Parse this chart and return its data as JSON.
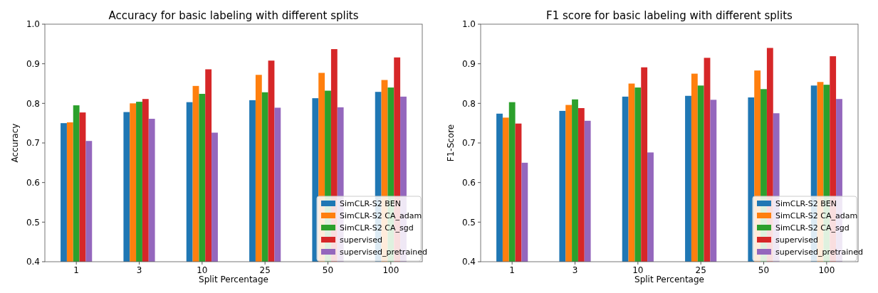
{
  "chart_data": [
    {
      "type": "bar",
      "title": "Accuracy for basic labeling with different splits",
      "xlabel": "Split Percentage",
      "ylabel": "Accuracy",
      "categories": [
        "1",
        "3",
        "10",
        "25",
        "50",
        "100"
      ],
      "ylim": [
        0.4,
        1.0
      ],
      "yticks": [
        {
          "value": 0.4,
          "label": "0.4"
        },
        {
          "value": 0.5,
          "label": "0.5"
        },
        {
          "value": 0.6,
          "label": "0.6"
        },
        {
          "value": 0.7,
          "label": "0.7"
        },
        {
          "value": 0.8,
          "label": "0.8"
        },
        {
          "value": 0.9,
          "label": "0.9"
        },
        {
          "value": 1.0,
          "label": "1.0"
        }
      ],
      "legend": "bottom right",
      "grid": false,
      "series": [
        {
          "name": "SimCLR-S2 BEN",
          "color": "#1f77b4",
          "values": [
            0.75,
            0.778,
            0.803,
            0.808,
            0.813,
            0.829
          ]
        },
        {
          "name": "SimCLR-S2 CA_adam",
          "color": "#ff7f0e",
          "values": [
            0.752,
            0.8,
            0.844,
            0.872,
            0.877,
            0.859
          ]
        },
        {
          "name": "SimCLR-S2 CA_sgd",
          "color": "#2ca02c",
          "values": [
            0.795,
            0.804,
            0.824,
            0.828,
            0.832,
            0.84
          ]
        },
        {
          "name": "supervised",
          "color": "#d62728",
          "values": [
            0.777,
            0.811,
            0.886,
            0.908,
            0.937,
            0.916
          ]
        },
        {
          "name": "supervised_pretrained",
          "color": "#9467bd",
          "values": [
            0.705,
            0.761,
            0.726,
            0.789,
            0.79,
            0.817
          ]
        }
      ]
    },
    {
      "type": "bar",
      "title": "F1 score for basic labeling with different splits",
      "xlabel": "Split Percentage",
      "ylabel": "F1-Score",
      "categories": [
        "1",
        "3",
        "10",
        "25",
        "50",
        "100"
      ],
      "ylim": [
        0.4,
        1.0
      ],
      "yticks": [
        {
          "value": 0.4,
          "label": "0.4"
        },
        {
          "value": 0.5,
          "label": "0.5"
        },
        {
          "value": 0.6,
          "label": "0.6"
        },
        {
          "value": 0.7,
          "label": "0.7"
        },
        {
          "value": 0.8,
          "label": "0.8"
        },
        {
          "value": 0.9,
          "label": "0.9"
        },
        {
          "value": 1.0,
          "label": "1.0"
        }
      ],
      "legend": "bottom right",
      "grid": false,
      "series": [
        {
          "name": "SimCLR-S2 BEN",
          "color": "#1f77b4",
          "values": [
            0.774,
            0.781,
            0.817,
            0.819,
            0.815,
            0.845
          ]
        },
        {
          "name": "SimCLR-S2 CA_adam",
          "color": "#ff7f0e",
          "values": [
            0.764,
            0.796,
            0.85,
            0.875,
            0.883,
            0.854
          ]
        },
        {
          "name": "SimCLR-S2 CA_sgd",
          "color": "#2ca02c",
          "values": [
            0.803,
            0.81,
            0.84,
            0.845,
            0.836,
            0.847
          ]
        },
        {
          "name": "supervised",
          "color": "#d62728",
          "values": [
            0.749,
            0.788,
            0.891,
            0.915,
            0.94,
            0.919
          ]
        },
        {
          "name": "supervised_pretrained",
          "color": "#9467bd",
          "values": [
            0.65,
            0.756,
            0.676,
            0.809,
            0.775,
            0.811
          ]
        }
      ]
    }
  ]
}
